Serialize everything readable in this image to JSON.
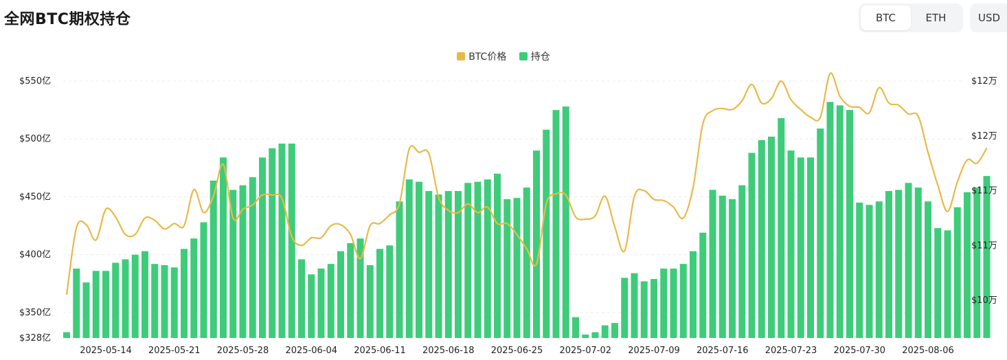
{
  "header": {
    "title": "全网BTC期权持仓",
    "toggle": [
      {
        "label": "BTC",
        "active": true
      },
      {
        "label": "ETH",
        "active": false
      }
    ],
    "currency": "USD"
  },
  "colors": {
    "price": "#e9b948",
    "oi": "#3ecc7a",
    "grid": "#ececec"
  },
  "chart_data": {
    "type": "bar",
    "legend": [
      {
        "name": "BTC价格",
        "color": "#e9b948"
      },
      {
        "name": "持仓",
        "color": "#3ecc7a"
      }
    ],
    "legend_position": "top-center",
    "x_tick_labels": [
      "2025-05-14",
      "2025-05-21",
      "2025-05-28",
      "2025-06-04",
      "2025-06-11",
      "2025-06-18",
      "2025-06-25",
      "2025-07-02",
      "2025-07-09",
      "2025-07-16",
      "2025-07-23",
      "2025-07-30",
      "2025-08-06"
    ],
    "y_left": {
      "ticks": [
        328,
        350,
        400,
        450,
        500,
        550
      ],
      "labels": [
        "$328亿",
        "$350亿",
        "$400亿",
        "$450亿",
        "$500亿",
        "$550亿"
      ],
      "range": [
        328,
        550
      ]
    },
    "y_right": {
      "ticks": [
        100000,
        105000,
        110000,
        115000,
        120000
      ],
      "labels": [
        "$10万",
        "$11万",
        "$11万",
        "$12万",
        "$12万"
      ],
      "range": [
        100000,
        120000
      ]
    },
    "series": [
      {
        "name": "持仓",
        "kind": "bar",
        "axis": "left",
        "values": [
          333,
          388,
          376,
          386,
          386,
          393,
          396,
          400,
          403,
          392,
          391,
          389,
          405,
          414,
          428,
          464,
          484,
          456,
          460,
          467,
          484,
          492,
          496,
          496,
          396,
          383,
          388,
          392,
          403,
          410,
          414,
          391,
          405,
          408,
          446,
          465,
          463,
          455,
          452,
          455,
          455,
          462,
          463,
          465,
          470,
          448,
          449,
          458,
          490,
          508,
          525,
          528,
          346,
          331,
          333,
          339,
          341,
          380,
          384,
          377,
          379,
          388,
          388,
          392,
          403,
          419,
          456,
          451,
          448,
          460,
          488,
          499,
          502,
          518,
          490,
          484,
          484,
          509,
          532,
          529,
          525,
          445,
          443,
          446,
          455,
          456,
          462,
          458,
          446,
          423,
          421,
          441,
          454,
          458,
          468
        ]
      },
      {
        "name": "BTC价格",
        "kind": "line",
        "axis": "right",
        "values": [
          100500,
          106600,
          106900,
          105500,
          108300,
          107600,
          106000,
          106000,
          107500,
          107300,
          106500,
          107000,
          106800,
          110100,
          108000,
          109500,
          112400,
          107500,
          108300,
          108700,
          109600,
          109600,
          109300,
          105800,
          105000,
          105700,
          105700,
          106800,
          106900,
          106000,
          103800,
          106800,
          107000,
          107800,
          108800,
          113800,
          113500,
          113400,
          109400,
          108200,
          108000,
          108800,
          108000,
          108500,
          107000,
          107000,
          106000,
          104700,
          103300,
          108800,
          109700,
          109600,
          107600,
          107400,
          107700,
          109500,
          106700,
          104500,
          109500,
          110000,
          109200,
          109100,
          108500,
          107500,
          110300,
          116100,
          117300,
          117500,
          117400,
          118200,
          119700,
          118000,
          118400,
          120000,
          118300,
          117400,
          116700,
          116700,
          120700,
          118600,
          117700,
          117600,
          117100,
          119400,
          118000,
          117800,
          117000,
          116800,
          113500,
          110500,
          108100,
          110800,
          112800,
          112500,
          113900
        ]
      }
    ]
  }
}
